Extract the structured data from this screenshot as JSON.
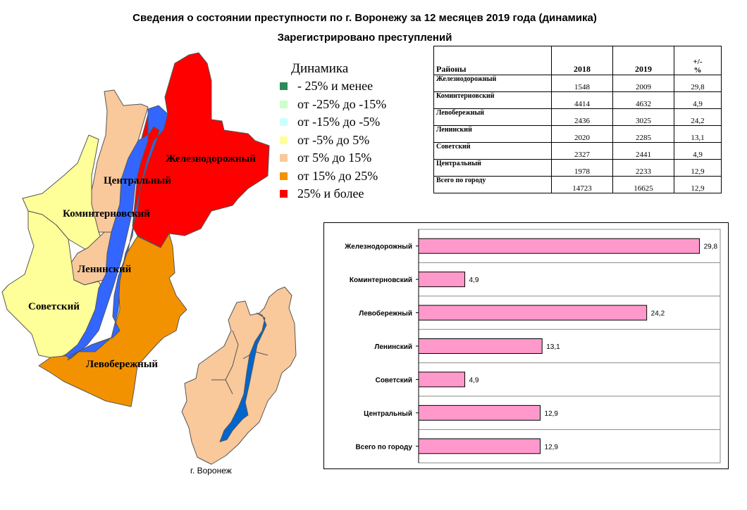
{
  "header": {
    "title": "Сведения о состоянии преступности по г. Воронежу за 12 месяцев 2019 года (динамика)",
    "subtitle": "Зарегистрировано преступлений"
  },
  "legend": {
    "title": "Динамика",
    "items": [
      {
        "label": "- 25% и менее",
        "color": "#2e8b57"
      },
      {
        "label": "от -25% до -15%",
        "color": "#ccffcc"
      },
      {
        "label": "от -15% до -5%",
        "color": "#ccffff"
      },
      {
        "label": "от -5% до 5%",
        "color": "#ffff99"
      },
      {
        "label": "от 5% до 15%",
        "color": "#f9c99b"
      },
      {
        "label": "от 15% до 25%",
        "color": "#f39200"
      },
      {
        "label": "25% и более",
        "color": "#ff0000"
      }
    ]
  },
  "map": {
    "districts": {
      "zheleznodorozhny": {
        "label": "Железнодорожный",
        "color": "#ff0000"
      },
      "tsentralny": {
        "label": "Центральный",
        "color": "#f9c99b"
      },
      "kominternovsky": {
        "label": "Коминтерновский",
        "color": "#ffff99"
      },
      "leninsky": {
        "label": "Ленинский",
        "color": "#f9c99b"
      },
      "sovetsky": {
        "label": "Советский",
        "color": "#ffff99"
      },
      "levoberezhny": {
        "label": "Левобережный",
        "color": "#f39200"
      }
    },
    "river_color": "#3366ff",
    "inset_fill": "#f9c99b",
    "inset_river": "#0066cc",
    "caption": "г. Воронеж"
  },
  "table": {
    "headers": {
      "district": "Районы",
      "y2018": "2018",
      "y2019": "2019",
      "change_top": "+/-",
      "change_bottom": "%"
    },
    "rows": [
      {
        "district": "Железнодорожный",
        "y2018": "1548",
        "y2019": "2009",
        "change": "29,8"
      },
      {
        "district": "Коминтерновский",
        "y2018": "4414",
        "y2019": "4632",
        "change": "4,9"
      },
      {
        "district": "Левобережный",
        "y2018": "2436",
        "y2019": "3025",
        "change": "24,2"
      },
      {
        "district": "Ленинский",
        "y2018": "2020",
        "y2019": "2285",
        "change": "13,1"
      },
      {
        "district": "Советский",
        "y2018": "2327",
        "y2019": "2441",
        "change": "4,9"
      },
      {
        "district": "Центральный",
        "y2018": "1978",
        "y2019": "2233",
        "change": "12,9"
      },
      {
        "district": "Всего по городу",
        "y2018": "14723",
        "y2019": "16625",
        "change": "12,9"
      }
    ]
  },
  "chart_data": {
    "type": "bar",
    "orientation": "horizontal",
    "categories": [
      "Железнодорожный",
      "Коминтерновский",
      "Левобережный",
      "Ленинский",
      "Советский",
      "Центральный",
      "Всего по городу"
    ],
    "values": [
      29.8,
      4.9,
      24.2,
      13.1,
      4.9,
      12.9,
      12.9
    ],
    "value_labels": [
      "29,8",
      "4,9",
      "24,2",
      "13,1",
      "4,9",
      "12,9",
      "12,9"
    ],
    "xlim": [
      0,
      32
    ],
    "grid": true,
    "bar_color": "#ff99cc"
  }
}
